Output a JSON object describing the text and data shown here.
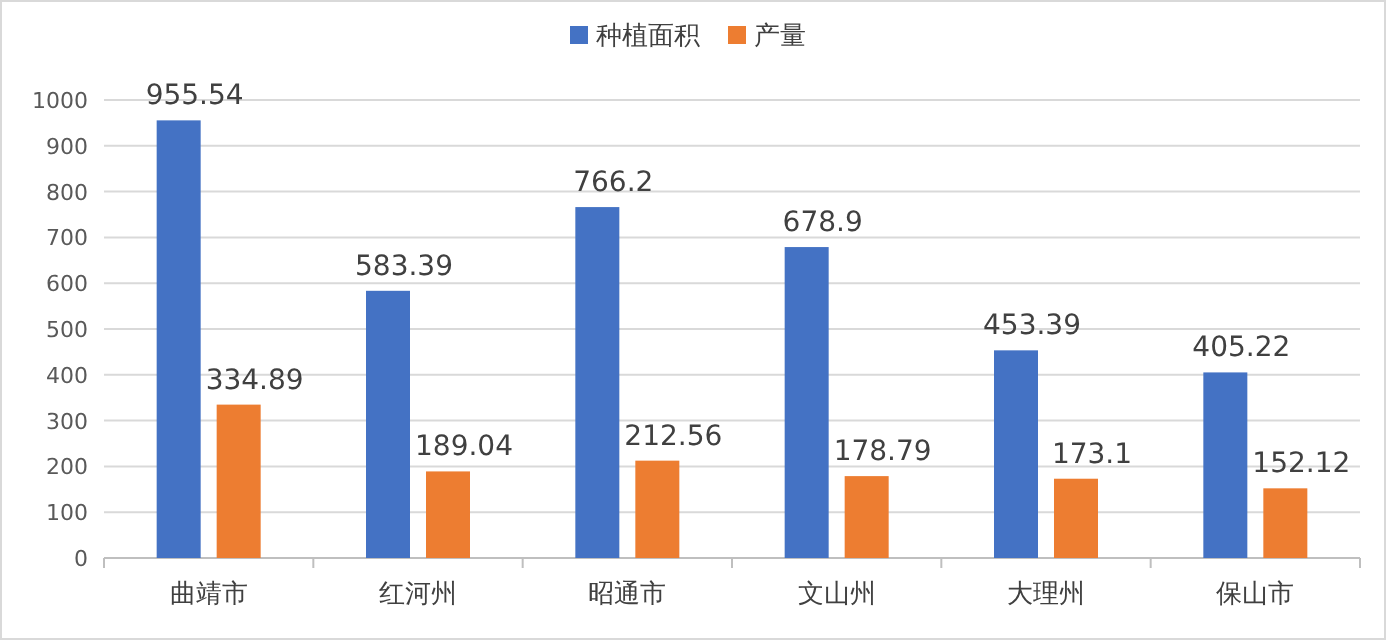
{
  "chart_data": {
    "type": "bar",
    "categories": [
      "曲靖市",
      "红河州",
      "昭通市",
      "文山州",
      "大理州",
      "保山市"
    ],
    "series": [
      {
        "name": "种植面积",
        "color": "#4472c4",
        "values": [
          955.54,
          583.39,
          766.2,
          678.9,
          453.39,
          405.22
        ]
      },
      {
        "name": "产量",
        "color": "#ed7d31",
        "values": [
          334.89,
          189.04,
          212.56,
          178.79,
          173.1,
          152.12
        ]
      }
    ],
    "ylim": [
      0,
      1000
    ],
    "yticks": [
      0,
      100,
      200,
      300,
      400,
      500,
      600,
      700,
      800,
      900,
      1000
    ],
    "grid": "y",
    "legend": "top",
    "data_labels": true
  }
}
